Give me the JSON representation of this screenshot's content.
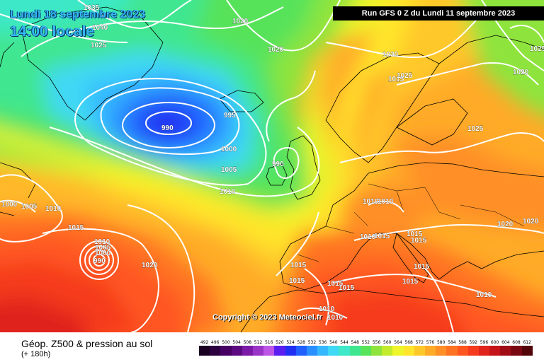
{
  "header": {
    "date": "Lundi 18 septembre 2023",
    "time": "14:00 locale",
    "run": "Run GFS 0 Z du Lundi 11 septembre 2023"
  },
  "copyright": "Copyright © 2023 Meteociel.fr",
  "legend": {
    "title": "Géop. Z500 & pression au sol",
    "subtitle": "(+ 180h)",
    "steps": [
      {
        "v": "492",
        "c": "#1a0021"
      },
      {
        "v": "496",
        "c": "#2d0040"
      },
      {
        "v": "500",
        "c": "#450062"
      },
      {
        "v": "504",
        "c": "#5c0a80"
      },
      {
        "v": "508",
        "c": "#7a1aa6"
      },
      {
        "v": "512",
        "c": "#9a34c8"
      },
      {
        "v": "516",
        "c": "#bc55e6"
      },
      {
        "v": "520",
        "c": "#5a1ff0"
      },
      {
        "v": "524",
        "c": "#2030f2"
      },
      {
        "v": "528",
        "c": "#2060ff"
      },
      {
        "v": "532",
        "c": "#2a90ff"
      },
      {
        "v": "536",
        "c": "#36b8ff"
      },
      {
        "v": "540",
        "c": "#3fd8f5"
      },
      {
        "v": "544",
        "c": "#3ee8c8"
      },
      {
        "v": "548",
        "c": "#3fe690"
      },
      {
        "v": "552",
        "c": "#57e35a"
      },
      {
        "v": "556",
        "c": "#8ee43c"
      },
      {
        "v": "560",
        "c": "#c2eb2c"
      },
      {
        "v": "564",
        "c": "#eef52a"
      },
      {
        "v": "568",
        "c": "#ffe52c"
      },
      {
        "v": "572",
        "c": "#ffc82a"
      },
      {
        "v": "576",
        "c": "#ffab28"
      },
      {
        "v": "580",
        "c": "#ff8f26"
      },
      {
        "v": "584",
        "c": "#ff7322"
      },
      {
        "v": "588",
        "c": "#ff5620"
      },
      {
        "v": "592",
        "c": "#f53a1e"
      },
      {
        "v": "596",
        "c": "#e0241c"
      },
      {
        "v": "600",
        "c": "#c4141a"
      },
      {
        "v": "604",
        "c": "#a00c16"
      },
      {
        "v": "608",
        "c": "#7a0812"
      },
      {
        "v": "612",
        "c": "#520409"
      }
    ]
  },
  "isobar_labels": [
    {
      "t": "1035"
    },
    {
      "t": "1040"
    },
    {
      "t": "1025"
    },
    {
      "t": "1020"
    },
    {
      "t": "1020"
    },
    {
      "t": "1030"
    },
    {
      "t": "1015"
    },
    {
      "t": "1020"
    },
    {
      "t": "990"
    },
    {
      "t": "995"
    },
    {
      "t": "1000"
    },
    {
      "t": "1005"
    },
    {
      "t": "1010"
    },
    {
      "t": "990"
    },
    {
      "t": "1025"
    },
    {
      "t": "1025"
    },
    {
      "t": "1010"
    },
    {
      "t": "1010"
    },
    {
      "t": "1000"
    },
    {
      "t": "1005"
    },
    {
      "t": "1010"
    },
    {
      "t": "1015"
    },
    {
      "t": "1010"
    },
    {
      "t": "1005"
    },
    {
      "t": "1000"
    },
    {
      "t": "990"
    },
    {
      "t": "1020"
    },
    {
      "t": "1015"
    },
    {
      "t": "1015"
    },
    {
      "t": "1015"
    },
    {
      "t": "1015"
    },
    {
      "t": "1015"
    },
    {
      "t": "1015"
    },
    {
      "t": "1015"
    },
    {
      "t": "1015"
    },
    {
      "t": "1020"
    },
    {
      "t": "1020"
    },
    {
      "t": "1010"
    },
    {
      "t": "1010"
    },
    {
      "t": "1010"
    },
    {
      "t": "1010"
    },
    {
      "t": "1015"
    },
    {
      "t": "1025"
    }
  ]
}
